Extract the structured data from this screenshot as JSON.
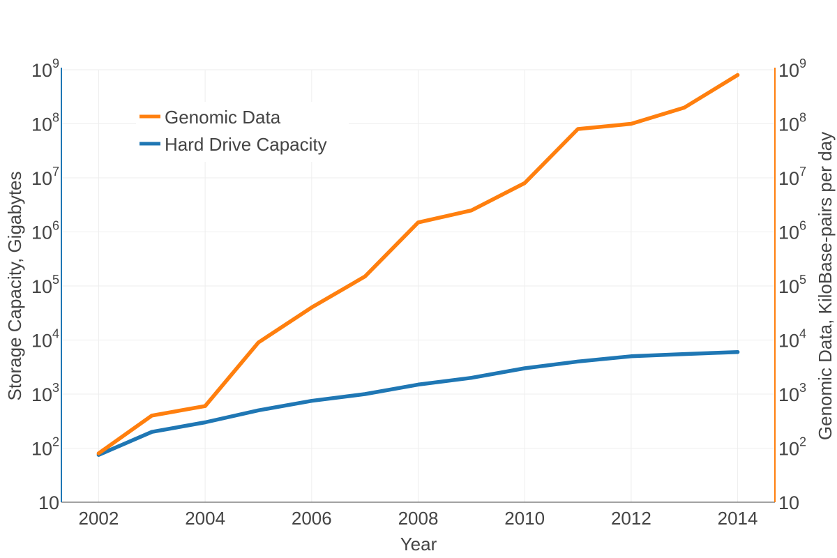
{
  "chart_data": {
    "type": "line",
    "title": "",
    "xlabel": "Year",
    "ylabel_left": "Storage Capacity, Gigabytes",
    "ylabel_right": "Genomic Data, KiloBase-pairs per day",
    "x_scale": "linear",
    "y_scale": "log",
    "xlim": [
      2001.3,
      2014.7
    ],
    "ylim": [
      10,
      1000000000
    ],
    "x_ticks": [
      2002,
      2004,
      2006,
      2008,
      2010,
      2012,
      2014
    ],
    "x_tick_labels": [
      "2002",
      "2004",
      "2006",
      "2008",
      "2010",
      "2012",
      "2014"
    ],
    "y_ticks": [
      {
        "value": 10,
        "base": "10",
        "exp": ""
      },
      {
        "value": 100,
        "base": "10",
        "exp": "2"
      },
      {
        "value": 1000,
        "base": "10",
        "exp": "3"
      },
      {
        "value": 10000,
        "base": "10",
        "exp": "4"
      },
      {
        "value": 100000,
        "base": "10",
        "exp": "5"
      },
      {
        "value": 1000000,
        "base": "10",
        "exp": "6"
      },
      {
        "value": 10000000,
        "base": "10",
        "exp": "7"
      },
      {
        "value": 100000000,
        "base": "10",
        "exp": "8"
      },
      {
        "value": 1000000000,
        "base": "10",
        "exp": "9"
      }
    ],
    "grid": true,
    "legend_position": "top-left",
    "series": [
      {
        "name": "Genomic Data",
        "axis": "right",
        "color": "#ff7f0e",
        "x": [
          2002,
          2003,
          2004,
          2005,
          2006,
          2007,
          2008,
          2009,
          2010,
          2011,
          2012,
          2013,
          2014
        ],
        "y": [
          80,
          400,
          600,
          9000,
          40000,
          150000,
          1500000,
          2500000,
          8000000,
          80000000,
          100000000,
          200000000,
          800000000
        ]
      },
      {
        "name": "Hard Drive Capacity",
        "axis": "left",
        "color": "#1f77b4",
        "x": [
          2002,
          2003,
          2004,
          2005,
          2006,
          2007,
          2008,
          2009,
          2010,
          2011,
          2012,
          2013,
          2014
        ],
        "y": [
          75,
          200,
          300,
          500,
          750,
          1000,
          1500,
          2000,
          3000,
          4000,
          5000,
          5500,
          6000
        ]
      }
    ],
    "colors": {
      "left_axis": "#1f77b4",
      "right_axis": "#ff7f0e",
      "grid": "#eeeeee",
      "text": "#444444"
    }
  }
}
